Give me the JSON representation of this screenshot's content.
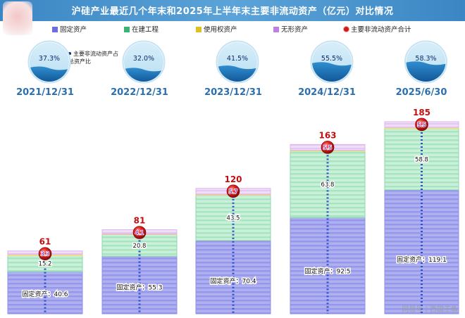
{
  "title": "沪硅产业最近几个年末和2025年上半年末主要非流动资产（亿元）对比情况",
  "legend": [
    {
      "label": "固定资产",
      "color": "#6d6de0"
    },
    {
      "label": "在建工程",
      "color": "#3cb371"
    },
    {
      "label": "使用权资产",
      "color": "#e0c020"
    },
    {
      "label": "无形资产",
      "color": "#c080e0"
    },
    {
      "label": "主要非流动资产合计",
      "color": "#d01a1a"
    }
  ],
  "pct_note": "主要非流动资产占总资产比",
  "fixed_label_prefix": "固定资产：",
  "watermark": "网易号 | 西国王鱼",
  "chart_data": {
    "type": "bar",
    "stacked": true,
    "title": "沪硅产业最近几个年末和2025年上半年末主要非流动资产（亿元）对比情况",
    "categories": [
      "2021/12/31",
      "2022/12/31",
      "2023/12/31",
      "2024/12/31",
      "2025/6/30"
    ],
    "series": [
      {
        "name": "固定资产",
        "values": [
          40.6,
          55.3,
          70.4,
          92.5,
          119.1
        ],
        "color": "#7a7ae6"
      },
      {
        "name": "在建工程",
        "values": [
          15.2,
          20.8,
          43.5,
          63.8,
          58.8
        ],
        "color": "#6fd29a"
      },
      {
        "name": "使用权资产",
        "values": [
          1.3,
          0.6,
          0.9,
          0.9,
          1.2
        ],
        "color": "#e8d84a"
      },
      {
        "name": "无形资产",
        "values": [
          3.3,
          4.1,
          5.7,
          5.5,
          5.5
        ],
        "color": "#d7a6ee"
      }
    ],
    "totals": {
      "name": "主要非流动资产合计",
      "values": [
        61,
        81,
        120,
        163,
        185
      ]
    },
    "ratio_series": {
      "name": "主要非流动资产占总资产比",
      "values": [
        "37.3%",
        "32.0%",
        "41.5%",
        "55.5%",
        "58.3%"
      ],
      "fractions": [
        0.373,
        0.32,
        0.415,
        0.555,
        0.583
      ]
    },
    "ylim": [
      0,
      185
    ],
    "grid": false,
    "legend_position": "top"
  }
}
